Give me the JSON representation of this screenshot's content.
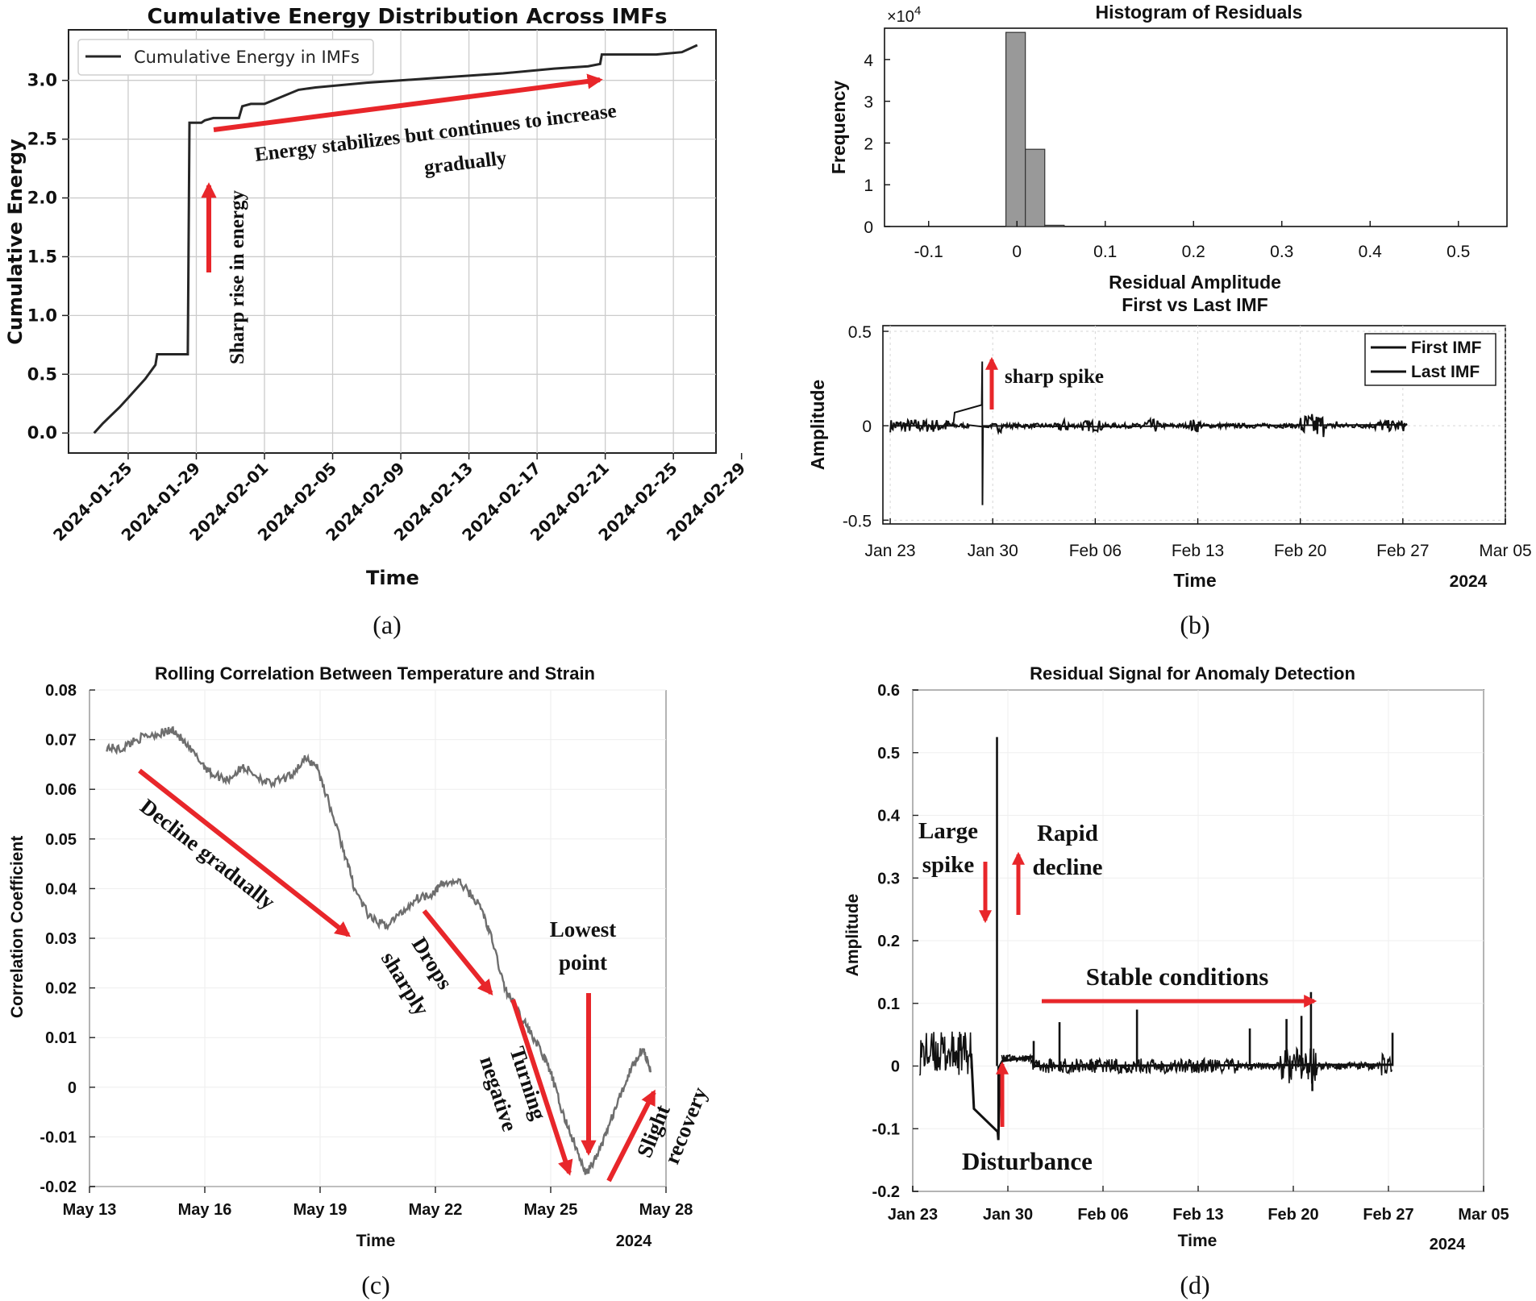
{
  "colors": {
    "arrow": "#e8262a",
    "line_dark": "#262626",
    "line_gray": "#6e6e6e",
    "bar": "#999999",
    "grid": "#cccccc"
  },
  "panel_labels": {
    "a": "(a)",
    "b": "(b)",
    "c": "(c)",
    "d": "(d)"
  },
  "chart_data": [
    {
      "id": "a",
      "type": "line",
      "title": "Cumulative Energy Distribution Across IMFs",
      "xlabel": "Time",
      "ylabel": "Cumulative Energy",
      "legend": [
        "Cumulative Energy in IMFs"
      ],
      "legend_position": "top-left",
      "grid": true,
      "xlim": [
        -1.5,
        36.5
      ],
      "ylim": [
        -0.17,
        3.43
      ],
      "xticks": [
        2,
        6,
        10,
        14,
        18,
        22,
        26,
        30,
        34,
        38
      ],
      "xtick_labels": [
        "2024-01-25",
        "2024-01-29",
        "2024-02-01",
        "2024-02-05",
        "2024-02-09",
        "2024-02-13",
        "2024-02-17",
        "2024-02-21",
        "2024-02-25",
        "2024-02-29"
      ],
      "yticks": [
        0,
        0.5,
        1.0,
        1.5,
        2.0,
        2.5,
        3.0
      ],
      "ytick_labels": [
        "0.0",
        "0.5",
        "1.0",
        "1.5",
        "2.0",
        "2.5",
        "3.0"
      ],
      "series": [
        {
          "name": "Cumulative Energy in IMFs",
          "x": [
            0,
            0.5,
            1,
            1.5,
            2,
            3,
            3.6,
            3.7,
            5.5,
            5.6,
            6.3,
            6.5,
            7,
            7.5,
            8.5,
            8.7,
            9.2,
            10,
            12,
            13,
            16,
            20,
            24,
            27,
            29,
            29.7,
            29.8,
            31,
            33,
            34.5,
            35.4
          ],
          "y": [
            0,
            0.08,
            0.15,
            0.22,
            0.3,
            0.46,
            0.58,
            0.67,
            0.67,
            2.64,
            2.64,
            2.66,
            2.68,
            2.68,
            2.68,
            2.78,
            2.8,
            2.8,
            2.92,
            2.94,
            2.98,
            3.02,
            3.06,
            3.1,
            3.12,
            3.14,
            3.22,
            3.22,
            3.22,
            3.24,
            3.3
          ]
        }
      ],
      "annotations": [
        "Energy stabilizes but continues to increase",
        "gradually",
        "Sharp rise in energy"
      ]
    },
    {
      "id": "b1",
      "type": "bar",
      "title": "Histogram of Residuals",
      "xlabel": "Residual Amplitude",
      "ylabel": "Frequency",
      "y_multiplier": "×10",
      "y_multiplier_exp": "4",
      "xlim": [
        -0.15,
        0.555
      ],
      "ylim": [
        0,
        4.75
      ],
      "xticks": [
        -0.1,
        0,
        0.1,
        0.2,
        0.3,
        0.4,
        0.5
      ],
      "xtick_labels": [
        "-0.1",
        "0",
        "0.1",
        "0.2",
        "0.3",
        "0.4",
        "0.5"
      ],
      "yticks": [
        0,
        1,
        2,
        3,
        4
      ],
      "ytick_labels": [
        "0",
        "1",
        "2",
        "3",
        "4"
      ],
      "bin_edges": [
        -0.0125,
        0.0095,
        0.0315,
        0.0535
      ],
      "values": [
        4.65,
        1.85,
        0.03
      ]
    },
    {
      "id": "b2",
      "type": "line",
      "title": "First vs Last IMF",
      "xlabel": "Time",
      "ylabel": "Amplitude",
      "year_label": "2024",
      "legend": [
        "First IMF",
        "Last IMF"
      ],
      "legend_position": "top-right",
      "xlim": [
        -0.5,
        42
      ],
      "ylim": [
        -0.52,
        0.53
      ],
      "xticks": [
        0,
        7,
        14,
        21,
        28,
        35,
        42
      ],
      "xtick_labels": [
        "Jan 23",
        "Jan 30",
        "Feb 06",
        "Feb 13",
        "Feb 20",
        "Feb 27",
        "Mar 05"
      ],
      "yticks": [
        -0.5,
        0,
        0.5
      ],
      "ytick_labels": [
        "-0.5",
        "0",
        "0.5"
      ],
      "annotations": [
        "sharp spike"
      ]
    },
    {
      "id": "c",
      "type": "line",
      "title": "Rolling Correlation Between Temperature and Strain",
      "xlabel": "Time",
      "ylabel": "Correlation Coefficient",
      "year_label": "2024",
      "xlim": [
        0,
        15
      ],
      "ylim": [
        -0.02,
        0.08
      ],
      "xticks": [
        0,
        3,
        6,
        9,
        12,
        15
      ],
      "xtick_labels": [
        "May 13",
        "May 16",
        "May 19",
        "May 22",
        "May 25",
        "May 28"
      ],
      "yticks": [
        -0.02,
        -0.01,
        0,
        0.01,
        0.02,
        0.03,
        0.04,
        0.05,
        0.06,
        0.07,
        0.08
      ],
      "ytick_labels": [
        "-0.02",
        "-0.01",
        "0",
        "0.01",
        "0.02",
        "0.03",
        "0.04",
        "0.05",
        "0.06",
        "0.07",
        "0.08"
      ],
      "series": [
        {
          "name": "Rolling correlation",
          "x": [
            0.45,
            0.8,
            1.2,
            1.6,
            2.0,
            2.2,
            2.5,
            2.9,
            3.2,
            3.6,
            4.0,
            4.3,
            4.7,
            5.2,
            5.6,
            5.9,
            6.2,
            6.6,
            6.9,
            7.3,
            7.7,
            8.1,
            8.5,
            8.9,
            9.2,
            9.6,
            9.9,
            10.2,
            10.5,
            10.8,
            11.1,
            11.4,
            11.7,
            12.0,
            12.3,
            12.6,
            12.9,
            13.2,
            13.5,
            13.8,
            14.1,
            14.4,
            14.6
          ],
          "y": [
            0.0685,
            0.068,
            0.07,
            0.071,
            0.0715,
            0.072,
            0.069,
            0.0655,
            0.063,
            0.062,
            0.0645,
            0.063,
            0.061,
            0.0625,
            0.066,
            0.065,
            0.058,
            0.048,
            0.04,
            0.034,
            0.0325,
            0.035,
            0.038,
            0.039,
            0.041,
            0.0415,
            0.039,
            0.036,
            0.029,
            0.02,
            0.016,
            0.012,
            0.008,
            0.003,
            -0.005,
            -0.011,
            -0.0175,
            -0.014,
            -0.008,
            -0.002,
            0.004,
            0.008,
            0.003
          ]
        }
      ],
      "annotations": [
        "Decline gradually",
        "Drops",
        "sharply",
        "Turning",
        "negative",
        "Lowest",
        "point",
        "Slight",
        "recovery"
      ]
    },
    {
      "id": "d",
      "type": "line",
      "title": "Residual Signal for Anomaly Detection",
      "xlabel": "Time",
      "ylabel": "Amplitude",
      "year_label": "2024",
      "xlim": [
        0,
        42
      ],
      "ylim": [
        -0.2,
        0.6
      ],
      "xticks": [
        0,
        7,
        14,
        21,
        28,
        35,
        42
      ],
      "xtick_labels": [
        "Jan 23",
        "Jan 30",
        "Feb 06",
        "Feb 13",
        "Feb 20",
        "Feb 27",
        "Mar 05"
      ],
      "yticks": [
        -0.2,
        -0.1,
        0,
        0.1,
        0.2,
        0.3,
        0.4,
        0.5,
        0.6
      ],
      "ytick_labels": [
        "-0.2",
        "-0.1",
        "0",
        "0.1",
        "0.2",
        "0.3",
        "0.4",
        "0.5",
        "0.6"
      ],
      "spikes": [
        {
          "x": 6.2,
          "y": 0.525
        },
        {
          "x": 6.3,
          "y": -0.118
        },
        {
          "x": 8.9,
          "y": 0.04
        },
        {
          "x": 10.8,
          "y": 0.07
        },
        {
          "x": 16.5,
          "y": 0.09
        },
        {
          "x": 24.8,
          "y": 0.06
        },
        {
          "x": 27.5,
          "y": 0.075
        },
        {
          "x": 28.6,
          "y": 0.08
        },
        {
          "x": 29.3,
          "y": 0.118
        },
        {
          "x": 29.4,
          "y": -0.04
        },
        {
          "x": 35.3,
          "y": 0.053
        }
      ],
      "annotations": [
        "Large",
        "spike",
        "Rapid",
        "decline",
        "Stable conditions",
        "Disturbance"
      ]
    }
  ]
}
